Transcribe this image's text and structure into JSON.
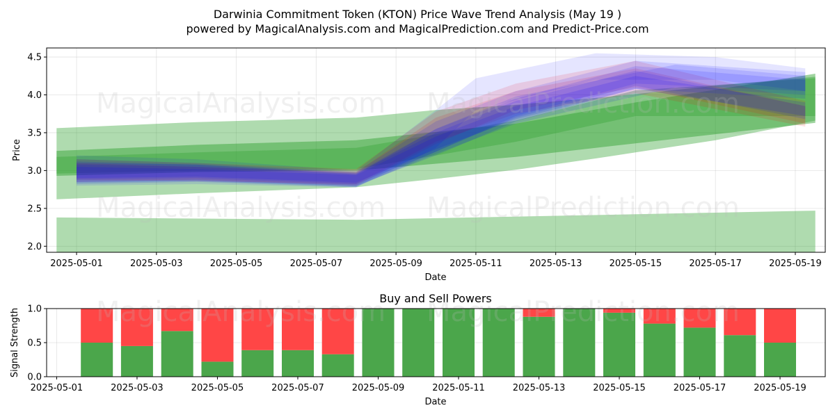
{
  "title_line1": "Darwinia Commitment Token (KTON) Price Wave Trend Analysis (May 19 )",
  "title_line2": "powered by MagicalAnalysis.com and MagicalPrediction.com and Predict-Price.com",
  "watermarks": [
    "MagicalAnalysis.com",
    "MagicalPrediction.com"
  ],
  "colors": {
    "green": "#2ca02c",
    "red": "#ff0000",
    "blue": "#0000ff",
    "buy": "#4ba64b",
    "sell": "#ff4646"
  },
  "chart_data": [
    {
      "type": "area",
      "xlabel": "Date",
      "ylabel": "Price",
      "ylim": [
        1.92,
        4.62
      ],
      "xlim": [
        "2025-04-30 06:00",
        "2025-05-19 18:00"
      ],
      "x_ticks": [
        "2025-05-01",
        "2025-05-03",
        "2025-05-05",
        "2025-05-07",
        "2025-05-09",
        "2025-05-11",
        "2025-05-13",
        "2025-05-15",
        "2025-05-17",
        "2025-05-19"
      ],
      "y_ticks": [
        "2.0",
        "2.5",
        "3.0",
        "3.5",
        "4.0",
        "4.5"
      ],
      "grid": true,
      "green_bands": [
        {
          "x": [
            "2025-04-30 12:00",
            "2025-05-08",
            "2025-05-19 12:00"
          ],
          "upper": [
            2.38,
            2.35,
            2.47
          ],
          "lower": [
            1.92,
            1.92,
            1.92
          ],
          "opacity": 0.38
        },
        {
          "x": [
            "2025-04-30 12:00",
            "2025-05-04",
            "2025-05-08",
            "2025-05-10",
            "2025-05-12",
            "2025-05-14",
            "2025-05-15",
            "2025-05-17",
            "2025-05-19 12:00"
          ],
          "upper": [
            3.56,
            3.64,
            3.7,
            3.8,
            3.87,
            3.96,
            4.01,
            4.12,
            4.24
          ],
          "lower": [
            2.62,
            2.7,
            2.78,
            2.89,
            3.01,
            3.16,
            3.24,
            3.4,
            3.66
          ],
          "opacity": 0.38
        },
        {
          "x": [
            "2025-04-30 12:00",
            "2025-05-04",
            "2025-05-08",
            "2025-05-12",
            "2025-05-15",
            "2025-05-19 12:00"
          ],
          "upper": [
            3.26,
            3.34,
            3.4,
            3.62,
            3.9,
            4.28
          ],
          "lower": [
            2.93,
            2.98,
            3.0,
            3.18,
            3.36,
            3.63
          ],
          "opacity": 0.45
        },
        {
          "x": [
            "2025-04-30 12:00",
            "2025-05-04",
            "2025-05-08",
            "2025-05-12",
            "2025-05-15",
            "2025-05-19 12:00"
          ],
          "upper": [
            3.18,
            3.24,
            3.3,
            3.66,
            4.06,
            4.22
          ],
          "lower": [
            2.96,
            3.0,
            3.02,
            3.38,
            3.72,
            3.72
          ],
          "opacity": 0.32
        }
      ],
      "wave_bands": [
        {
          "color": "red",
          "x": [
            "2025-05-01",
            "2025-05-04",
            "2025-05-08",
            "2025-05-10",
            "2025-05-12",
            "2025-05-15",
            "2025-05-19 06:00"
          ],
          "upper": [
            3.15,
            3.1,
            3.02,
            3.78,
            4.15,
            4.45,
            3.92
          ],
          "lower": [
            2.85,
            2.88,
            2.8,
            3.35,
            3.8,
            4.1,
            3.62
          ],
          "opacity": 0.12
        },
        {
          "color": "red",
          "x": [
            "2025-05-01",
            "2025-05-04",
            "2025-05-08",
            "2025-05-10",
            "2025-05-12",
            "2025-05-15",
            "2025-05-19 06:00"
          ],
          "upper": [
            3.1,
            3.05,
            2.98,
            3.7,
            4.05,
            4.35,
            3.85
          ],
          "lower": [
            2.88,
            2.86,
            2.82,
            3.38,
            3.75,
            4.02,
            3.58
          ],
          "opacity": 0.12
        },
        {
          "color": "blue",
          "x": [
            "2025-05-01",
            "2025-05-04",
            "2025-05-08",
            "2025-05-10",
            "2025-05-11",
            "2025-05-14",
            "2025-05-17",
            "2025-05-19 06:00"
          ],
          "upper": [
            3.2,
            3.15,
            3.0,
            3.8,
            4.22,
            4.55,
            4.5,
            4.35
          ],
          "lower": [
            2.8,
            2.82,
            2.78,
            3.3,
            3.8,
            4.2,
            4.2,
            4.05
          ],
          "opacity": 0.1
        },
        {
          "color": "blue",
          "x": [
            "2025-05-01",
            "2025-05-04",
            "2025-05-08",
            "2025-05-10",
            "2025-05-12",
            "2025-05-15",
            "2025-05-19 06:00"
          ],
          "upper": [
            3.15,
            3.1,
            2.98,
            3.65,
            4.05,
            4.45,
            4.3
          ],
          "lower": [
            2.82,
            2.85,
            2.78,
            3.25,
            3.72,
            4.15,
            4.05
          ],
          "opacity": 0.12
        },
        {
          "color": "blue",
          "x": [
            "2025-05-01",
            "2025-05-04",
            "2025-05-08",
            "2025-05-10",
            "2025-05-12",
            "2025-05-15",
            "2025-05-19 06:00"
          ],
          "upper": [
            3.1,
            3.08,
            2.95,
            3.55,
            3.95,
            4.38,
            4.2
          ],
          "lower": [
            2.85,
            2.87,
            2.8,
            3.2,
            3.65,
            4.08,
            3.95
          ],
          "opacity": 0.12
        },
        {
          "color": "blue",
          "x": [
            "2025-05-01",
            "2025-05-04",
            "2025-05-08",
            "2025-05-10",
            "2025-05-12",
            "2025-05-15",
            "2025-05-19 06:00"
          ],
          "upper": [
            3.08,
            3.05,
            2.96,
            3.5,
            3.92,
            4.32,
            3.85
          ],
          "lower": [
            2.88,
            2.9,
            2.82,
            3.25,
            3.7,
            4.12,
            3.68
          ],
          "opacity": 0.13
        },
        {
          "color": "blue",
          "x": [
            "2025-05-01",
            "2025-05-04",
            "2025-05-08",
            "2025-05-10",
            "2025-05-12",
            "2025-05-15",
            "2025-05-19 06:00"
          ],
          "upper": [
            3.05,
            3.02,
            2.94,
            3.45,
            3.85,
            4.25,
            3.9
          ],
          "lower": [
            2.9,
            2.92,
            2.84,
            3.28,
            3.68,
            4.08,
            3.72
          ],
          "opacity": 0.14
        },
        {
          "color": "blue",
          "x": [
            "2025-05-01",
            "2025-05-04",
            "2025-05-08",
            "2025-05-10",
            "2025-05-12",
            "2025-05-16",
            "2025-05-19 06:00"
          ],
          "upper": [
            3.12,
            3.08,
            2.97,
            3.55,
            3.98,
            4.4,
            4.25
          ],
          "lower": [
            2.84,
            2.86,
            2.79,
            3.22,
            3.62,
            4.1,
            4.0
          ],
          "opacity": 0.12
        }
      ]
    },
    {
      "type": "bar",
      "title": "Buy and Sell Powers",
      "xlabel": "Date",
      "ylabel": "Signal Strength",
      "ylim": [
        0,
        1
      ],
      "y_ticks": [
        "0.0",
        "0.5",
        "1.0"
      ],
      "x_ticks": [
        "2025-05-01",
        "2025-05-03",
        "2025-05-05",
        "2025-05-07",
        "2025-05-09",
        "2025-05-11",
        "2025-05-13",
        "2025-05-15",
        "2025-05-17",
        "2025-05-19"
      ],
      "categories": [
        "2025-05-02",
        "2025-05-03",
        "2025-05-04",
        "2025-05-05",
        "2025-05-06",
        "2025-05-07",
        "2025-05-08",
        "2025-05-09",
        "2025-05-10",
        "2025-05-11",
        "2025-05-12",
        "2025-05-13",
        "2025-05-14",
        "2025-05-15",
        "2025-05-16",
        "2025-05-17",
        "2025-05-18",
        "2025-05-19"
      ],
      "series": [
        {
          "values": [
            0.5,
            0.45,
            0.67,
            0.22,
            0.39,
            0.39,
            0.33,
            1.0,
            1.0,
            1.0,
            1.0,
            0.88,
            1.0,
            0.94,
            0.78,
            0.72,
            0.61,
            0.5
          ]
        },
        {
          "values": [
            0.5,
            0.55,
            0.33,
            0.78,
            0.61,
            0.61,
            0.67,
            0.0,
            0.0,
            0.0,
            0.0,
            0.12,
            0.0,
            0.06,
            0.22,
            0.28,
            0.39,
            0.5
          ]
        }
      ]
    }
  ]
}
